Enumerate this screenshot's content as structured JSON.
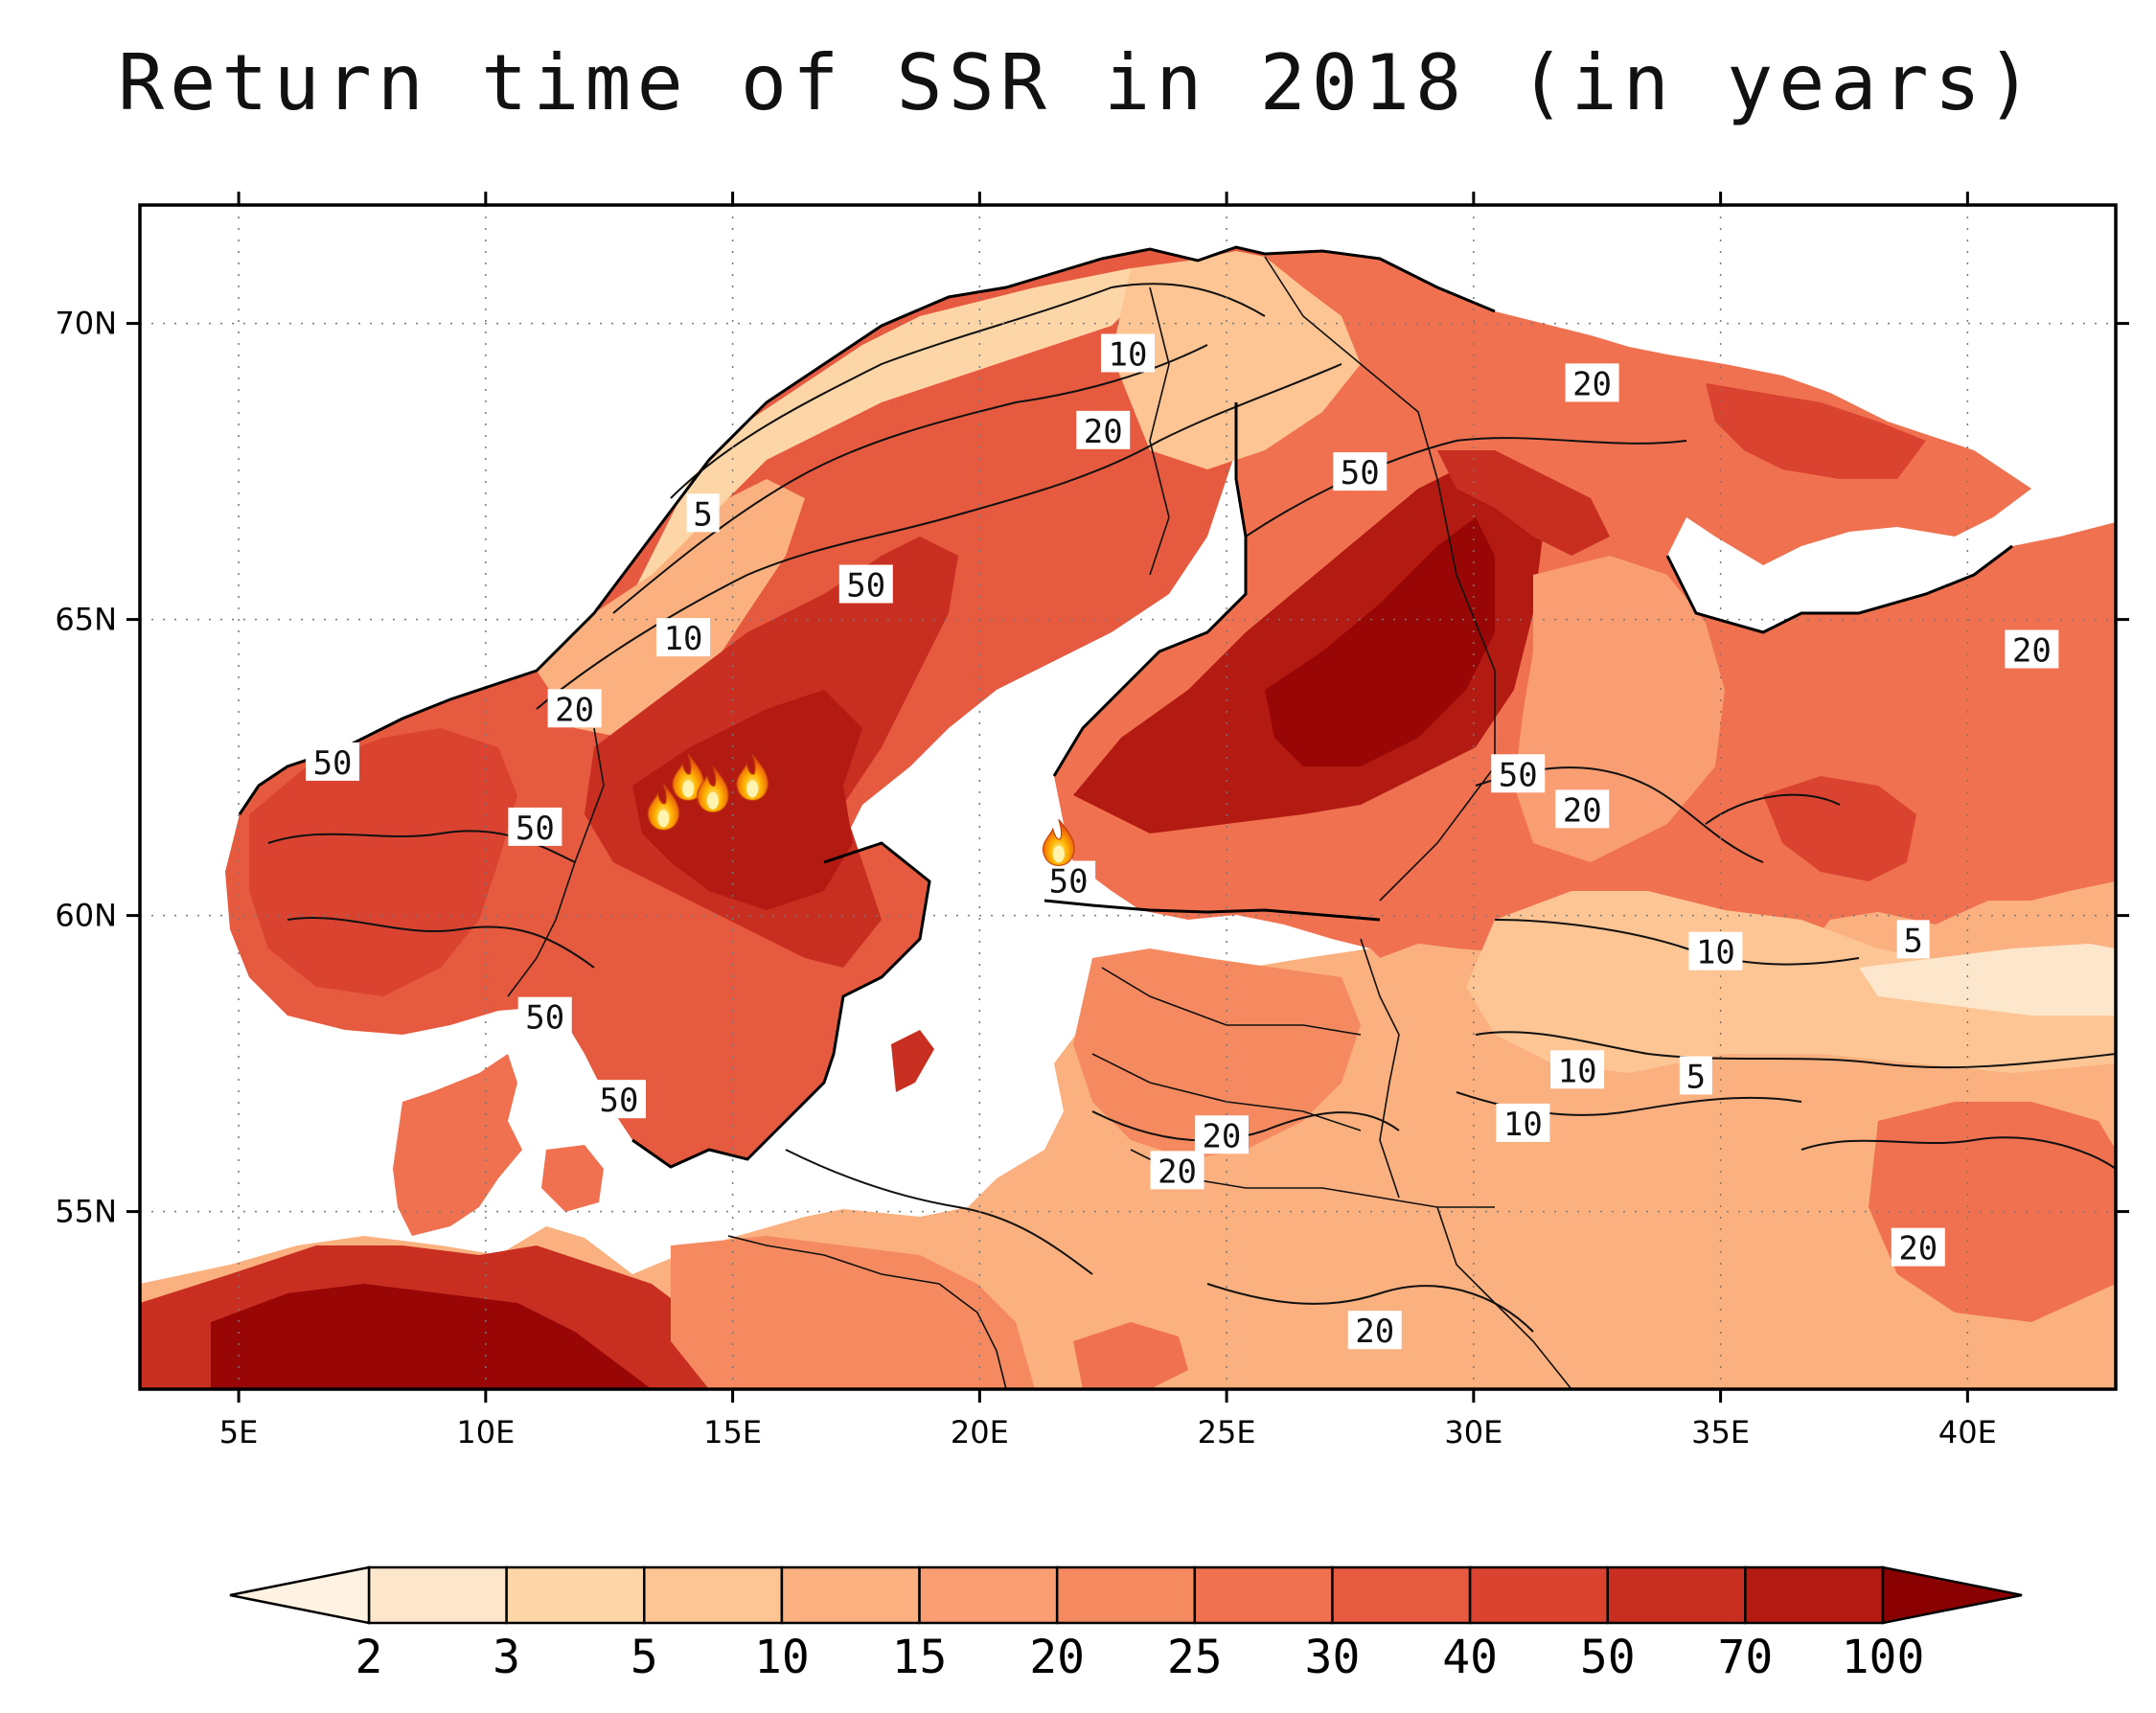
{
  "title": "Return time of SSR in 2018 (in years)",
  "map": {
    "region": "Northern Europe / Fennoscandia",
    "lon_range": [
      3,
      43
    ],
    "lat_range": [
      52,
      72
    ],
    "lon_ticks": [
      {
        "value": 5,
        "label": "5E"
      },
      {
        "value": 10,
        "label": "10E"
      },
      {
        "value": 15,
        "label": "15E"
      },
      {
        "value": 20,
        "label": "20E"
      },
      {
        "value": 25,
        "label": "25E"
      },
      {
        "value": 30,
        "label": "30E"
      },
      {
        "value": 35,
        "label": "35E"
      },
      {
        "value": 40,
        "label": "40E"
      }
    ],
    "lat_ticks": [
      {
        "value": 55,
        "label": "55N"
      },
      {
        "value": 60,
        "label": "60N"
      },
      {
        "value": 65,
        "label": "65N"
      },
      {
        "value": 70,
        "label": "70N"
      }
    ],
    "grid": "dotted",
    "contour_labels": [
      {
        "text": "10",
        "lon": 23.0,
        "lat": 69.5
      },
      {
        "text": "20",
        "lon": 22.5,
        "lat": 68.2
      },
      {
        "text": "20",
        "lon": 32.4,
        "lat": 69.0
      },
      {
        "text": "50",
        "lon": 27.7,
        "lat": 67.5
      },
      {
        "text": "5",
        "lon": 14.4,
        "lat": 66.8
      },
      {
        "text": "50",
        "lon": 17.7,
        "lat": 65.6
      },
      {
        "text": "10",
        "lon": 14.0,
        "lat": 64.7
      },
      {
        "text": "20",
        "lon": 11.8,
        "lat": 63.5
      },
      {
        "text": "50",
        "lon": 6.9,
        "lat": 62.6
      },
      {
        "text": "50",
        "lon": 11.0,
        "lat": 61.5
      },
      {
        "text": "50",
        "lon": 30.9,
        "lat": 62.4
      },
      {
        "text": "20",
        "lon": 32.2,
        "lat": 61.8
      },
      {
        "text": "50",
        "lon": 21.8,
        "lat": 60.6
      },
      {
        "text": "20",
        "lon": 41.3,
        "lat": 64.5
      },
      {
        "text": "10",
        "lon": 34.9,
        "lat": 59.4
      },
      {
        "text": "5",
        "lon": 38.9,
        "lat": 59.6
      },
      {
        "text": "50",
        "lon": 11.2,
        "lat": 58.3
      },
      {
        "text": "10",
        "lon": 32.1,
        "lat": 57.4
      },
      {
        "text": "5",
        "lon": 34.5,
        "lat": 57.3
      },
      {
        "text": "50",
        "lon": 12.7,
        "lat": 56.9
      },
      {
        "text": "10",
        "lon": 31.0,
        "lat": 56.5
      },
      {
        "text": "20",
        "lon": 24.9,
        "lat": 56.3
      },
      {
        "text": "20",
        "lon": 24.0,
        "lat": 55.7
      },
      {
        "text": "20",
        "lon": 39.0,
        "lat": 54.4
      },
      {
        "text": "20",
        "lon": 28.0,
        "lat": 53.0
      }
    ],
    "fire_markers": [
      {
        "lon": 13.6,
        "lat": 61.8
      },
      {
        "lon": 14.1,
        "lat": 62.3
      },
      {
        "lon": 14.6,
        "lat": 62.1
      },
      {
        "lon": 15.4,
        "lat": 62.3
      },
      {
        "lon": 21.6,
        "lat": 61.2
      }
    ],
    "fire_icon": "fire-icon"
  },
  "colorbar": {
    "levels": [
      "2",
      "3",
      "5",
      "10",
      "15",
      "20",
      "25",
      "30",
      "40",
      "50",
      "70",
      "100"
    ],
    "colors": [
      "#fde7cc",
      "#fdd6a8",
      "#fcc593",
      "#fbb07f",
      "#f99d72",
      "#f58a60",
      "#ef7150",
      "#e65a3f",
      "#d9432f",
      "#c82f21",
      "#b31a12",
      "#980606"
    ],
    "under_color": "#fff2e3",
    "over_color": "#8a0000"
  }
}
